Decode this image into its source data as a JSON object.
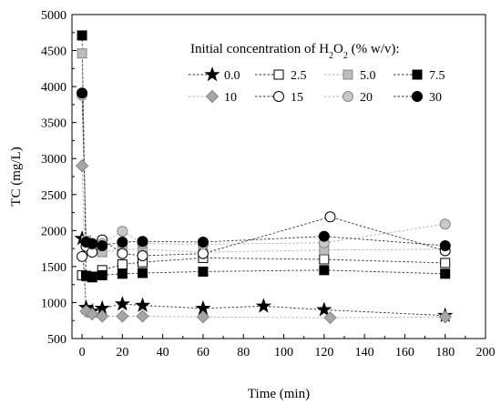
{
  "chart_data": {
    "type": "scatter",
    "title": "",
    "xlabel": "Time (min)",
    "ylabel": "TC (mg/L)",
    "xlim": [
      -5,
      200
    ],
    "ylim": [
      500,
      5000
    ],
    "xticks": [
      0,
      20,
      40,
      60,
      80,
      100,
      120,
      140,
      160,
      180,
      200
    ],
    "yticks": [
      500,
      1000,
      1500,
      2000,
      2500,
      3000,
      3500,
      4000,
      4500,
      5000
    ],
    "legend_title_prefix": "Initial concentration of H",
    "legend_title_sub1": "2",
    "legend_title_mid": "O",
    "legend_title_sub2": "2",
    "legend_title_suffix": " (% w/v):",
    "legend_position": "top-right",
    "series": [
      {
        "name": "0.0",
        "marker": "star",
        "fill": "#000000",
        "color": "#000000",
        "x": [
          0,
          2,
          5,
          10,
          20,
          30,
          60,
          90,
          120,
          180
        ],
        "y": [
          1890,
          930,
          880,
          920,
          980,
          960,
          920,
          950,
          900,
          820
        ]
      },
      {
        "name": "2.5",
        "marker": "square",
        "fill": "#ffffff",
        "color": "#000000",
        "x": [
          0,
          2,
          5,
          10,
          20,
          30,
          60,
          120,
          180
        ],
        "y": [
          1380,
          1370,
          1360,
          1450,
          1530,
          1560,
          1620,
          1600,
          1550
        ]
      },
      {
        "name": "5.0",
        "marker": "square",
        "fill": "#bdbdbd",
        "color": "#bdbdbd",
        "x": [
          0,
          2,
          5,
          10,
          20,
          30,
          60,
          120,
          180
        ],
        "y": [
          4460,
          1860,
          1790,
          1700,
          1740,
          1740,
          1700,
          1730,
          1740
        ]
      },
      {
        "name": "7.5",
        "marker": "square",
        "fill": "#000000",
        "color": "#000000",
        "x": [
          0,
          2,
          5,
          10,
          20,
          30,
          60,
          120,
          180
        ],
        "y": [
          4710,
          1370,
          1350,
          1380,
          1400,
          1410,
          1430,
          1450,
          1400
        ]
      },
      {
        "name": "10",
        "marker": "diamond",
        "fill": "#a6a6a6",
        "color": "#a6a6a6",
        "x": [
          0,
          2,
          5,
          10,
          20,
          30,
          60,
          123,
          180
        ],
        "y": [
          2900,
          880,
          840,
          810,
          810,
          810,
          800,
          790,
          800
        ]
      },
      {
        "name": "15",
        "marker": "circle",
        "fill": "#ffffff",
        "color": "#000000",
        "x": [
          0,
          2,
          5,
          10,
          20,
          30,
          60,
          123,
          180
        ],
        "y": [
          1640,
          1780,
          1700,
          1870,
          1680,
          1650,
          1680,
          2190,
          1720
        ]
      },
      {
        "name": "20",
        "marker": "circle",
        "fill": "#c8c8c8",
        "color": "#c8c8c8",
        "x": [
          0,
          2,
          5,
          10,
          20,
          30,
          60,
          120,
          180
        ],
        "y": [
          3880,
          1840,
          1810,
          1820,
          1990,
          1820,
          1810,
          1830,
          2090
        ]
      },
      {
        "name": "30",
        "marker": "circle",
        "fill": "#000000",
        "color": "#000000",
        "x": [
          0,
          2,
          5,
          10,
          20,
          30,
          60,
          120,
          180
        ],
        "y": [
          3910,
          1840,
          1820,
          1790,
          1840,
          1850,
          1840,
          1920,
          1790
        ]
      }
    ]
  }
}
